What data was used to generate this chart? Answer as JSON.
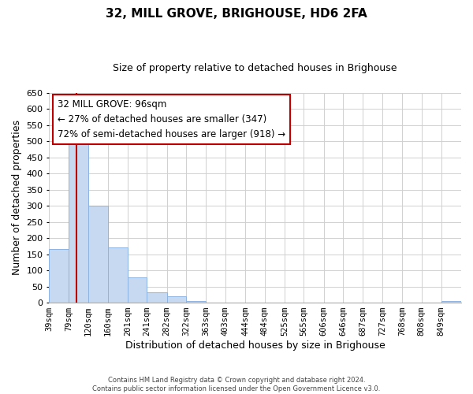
{
  "title": "32, MILL GROVE, BRIGHOUSE, HD6 2FA",
  "subtitle": "Size of property relative to detached houses in Brighouse",
  "xlabel": "Distribution of detached houses by size in Brighouse",
  "ylabel": "Number of detached properties",
  "bar_labels": [
    "39sqm",
    "79sqm",
    "120sqm",
    "160sqm",
    "201sqm",
    "241sqm",
    "282sqm",
    "322sqm",
    "363sqm",
    "403sqm",
    "444sqm",
    "484sqm",
    "525sqm",
    "565sqm",
    "606sqm",
    "646sqm",
    "687sqm",
    "727sqm",
    "768sqm",
    "808sqm",
    "849sqm"
  ],
  "bar_values": [
    165,
    510,
    300,
    170,
    78,
    32,
    20,
    5,
    0,
    0,
    0,
    0,
    0,
    0,
    0,
    0,
    0,
    0,
    0,
    0,
    5
  ],
  "bar_color": "#c6d9f0",
  "bar_edge_color": "#8db3e2",
  "ylim": [
    0,
    650
  ],
  "yticks": [
    0,
    50,
    100,
    150,
    200,
    250,
    300,
    350,
    400,
    450,
    500,
    550,
    600,
    650
  ],
  "property_line_color": "#c00000",
  "annotation_line1": "32 MILL GROVE: 96sqm",
  "annotation_line2": "← 27% of detached houses are smaller (347)",
  "annotation_line3": "72% of semi-detached houses are larger (918) →",
  "annotation_box_color": "#c00000",
  "footer_line1": "Contains HM Land Registry data © Crown copyright and database right 2024.",
  "footer_line2": "Contains public sector information licensed under the Open Government Licence v3.0.",
  "bin_edges": [
    39,
    79,
    120,
    160,
    201,
    241,
    282,
    322,
    363,
    403,
    444,
    484,
    525,
    565,
    606,
    646,
    687,
    727,
    768,
    808,
    849,
    890
  ],
  "grid_color": "#d0d0d0",
  "background_color": "#ffffff",
  "property_line_x": 96
}
